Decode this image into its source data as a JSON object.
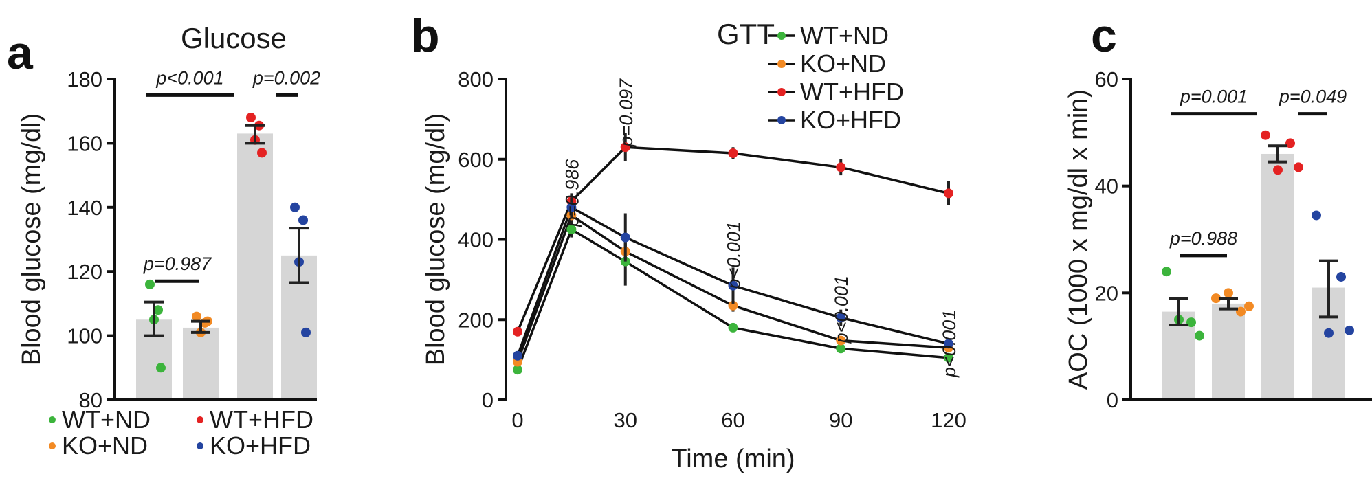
{
  "colors": {
    "WT+ND": "#3cb43c",
    "KO+ND": "#f28a24",
    "WT+HFD": "#e42222",
    "KO+HFD": "#2444a0",
    "bar": "#d6d6d6",
    "axis": "#111111"
  },
  "chart_data": [
    {
      "panel": "a",
      "type": "bar",
      "title": "Glucose",
      "ylabel": "Blood glucose (mg/dl)",
      "ylim": [
        80,
        180
      ],
      "yticks": [
        80,
        100,
        120,
        140,
        160,
        180
      ],
      "categories": [
        "WT+ND",
        "KO+ND",
        "WT+HFD",
        "KO+HFD"
      ],
      "values": [
        105,
        102.5,
        163,
        125
      ],
      "error_low": [
        100,
        101,
        160,
        116.5
      ],
      "error_high": [
        110.5,
        104.5,
        165.5,
        133.5
      ],
      "points": [
        [
          116,
          108,
          105,
          90
        ],
        [
          106,
          104,
          101,
          104.5
        ],
        [
          168,
          165.5,
          161,
          157
        ],
        [
          140,
          136,
          123,
          101
        ]
      ],
      "legend": [
        "WT+ND",
        "KO+ND",
        "WT+HFD",
        "KO+HFD"
      ],
      "legend_placement": "bottom",
      "annotations": [
        {
          "text": "p<0.001",
          "from": 0,
          "to": 2,
          "y": 175
        },
        {
          "text": "p=0.002",
          "from": 2,
          "to": 3,
          "y": 175
        },
        {
          "text": "p=0.987",
          "from": 0,
          "to": 1,
          "y": 117
        }
      ]
    },
    {
      "panel": "b",
      "type": "line",
      "title": "GTT",
      "xlabel": "Time (min)",
      "ylabel": "Blood glucose (mg/dl)",
      "xlim": [
        0,
        120
      ],
      "ylim": [
        0,
        800
      ],
      "xticks": [
        0,
        30,
        60,
        90,
        120
      ],
      "yticks": [
        0,
        200,
        400,
        600,
        800
      ],
      "x": [
        0,
        15,
        30,
        60,
        90,
        120
      ],
      "series": [
        {
          "name": "WT+ND",
          "values": [
            75,
            425,
            345,
            180,
            128,
            105
          ],
          "sem": [
            8,
            20,
            60,
            8,
            8,
            8
          ]
        },
        {
          "name": "KO+ND",
          "values": [
            95,
            460,
            370,
            235,
            148,
            130
          ],
          "sem": [
            8,
            25,
            20,
            15,
            10,
            8
          ]
        },
        {
          "name": "WT+HFD",
          "values": [
            170,
            495,
            630,
            615,
            580,
            515
          ],
          "sem": [
            10,
            20,
            35,
            15,
            20,
            30
          ]
        },
        {
          "name": "KO+HFD",
          "values": [
            110,
            480,
            405,
            285,
            205,
            140
          ],
          "sem": [
            10,
            25,
            60,
            45,
            20,
            8
          ]
        }
      ],
      "legend_placement": "top-right",
      "annotations": [
        {
          "text": "p=0.986",
          "x": 15,
          "y": 600
        },
        {
          "text": "p=0.097",
          "x": 30,
          "y": 800
        },
        {
          "text": "p<0.001",
          "x": 60,
          "y": 445
        },
        {
          "text": "p<0.001",
          "x": 90,
          "y": 310
        },
        {
          "text": "p<0.001",
          "x": 120,
          "y": 225
        }
      ]
    },
    {
      "panel": "c",
      "type": "bar",
      "ylabel": "AOC (1000 x mg/dl x min)",
      "ylim": [
        0,
        60
      ],
      "yticks": [
        0,
        20,
        40,
        60
      ],
      "categories": [
        "WT+ND",
        "KO+ND",
        "WT+HFD",
        "KO+HFD"
      ],
      "values": [
        16.5,
        18,
        46,
        21
      ],
      "error_low": [
        14,
        17,
        44.5,
        15.5
      ],
      "error_high": [
        19,
        19,
        47.5,
        26
      ],
      "points": [
        [
          24,
          14.5,
          15,
          12
        ],
        [
          19,
          16.5,
          20,
          17.5
        ],
        [
          49.5,
          48,
          43,
          43.5
        ],
        [
          34.5,
          23,
          12.5,
          13
        ]
      ],
      "annotations": [
        {
          "text": "p=0.001",
          "from": 0,
          "to": 2,
          "y": 53.5
        },
        {
          "text": "p=0.049",
          "from": 2,
          "to": 3,
          "y": 53.5
        },
        {
          "text": "p=0.988",
          "from": 0,
          "to": 1,
          "y": 27
        }
      ]
    }
  ]
}
